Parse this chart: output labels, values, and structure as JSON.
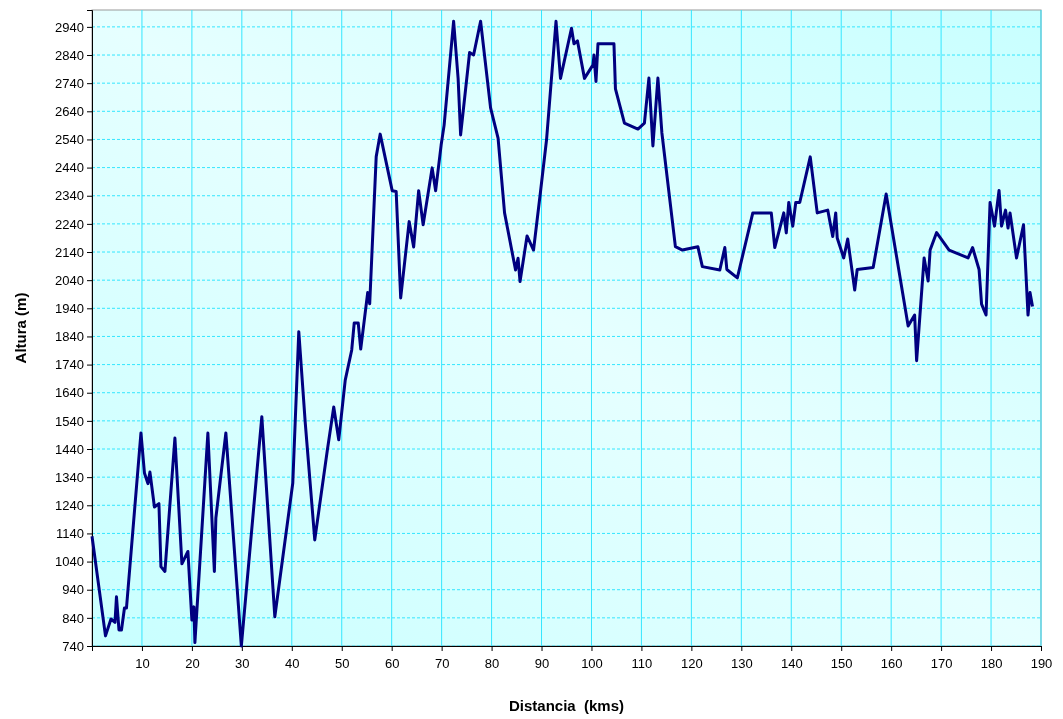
{
  "chart_data": {
    "type": "line",
    "xlabel": "Distancia  (kms)",
    "ylabel": "Altura (m)",
    "xlim": [
      0,
      190
    ],
    "xticks": [
      10,
      20,
      30,
      40,
      50,
      60,
      70,
      80,
      90,
      100,
      110,
      120,
      130,
      140,
      150,
      160,
      170,
      180,
      190
    ],
    "ylim": [
      740,
      3000
    ],
    "yticks": [
      740,
      840,
      940,
      1040,
      1140,
      1240,
      1340,
      1440,
      1540,
      1640,
      1740,
      1840,
      1940,
      2040,
      2140,
      2240,
      2340,
      2440,
      2540,
      2640,
      2740,
      2840,
      2940
    ],
    "grid": true,
    "marker": "none",
    "line_style": "solid",
    "series": [
      {
        "color": "#000080",
        "x": [
          0,
          2.7,
          3.8,
          4.6,
          4.9,
          5.4,
          5.9,
          6.5,
          6.9,
          9.8,
          10.5,
          11.2,
          11.6,
          12.5,
          13.4,
          13.8,
          14.6,
          16.6,
          18.0,
          19.2,
          20.0,
          20.4,
          20.6,
          23.2,
          24.5,
          24.8,
          26.8,
          29.9,
          34.0,
          36.6,
          40.2,
          41.4,
          42.7,
          44.6,
          47.1,
          48.4,
          49.4,
          50.7,
          52.0,
          52.5,
          53.3,
          53.8,
          55.2,
          55.6,
          56.9,
          57.7,
          60.1,
          60.9,
          61.8,
          63.5,
          64.4,
          65.4,
          66.3,
          68.1,
          68.8,
          69.9,
          70.5,
          72.4,
          73.3,
          73.8,
          75.6,
          76.4,
          77.8,
          79.8,
          81.3,
          82.6,
          84.8,
          85.3,
          85.7,
          87.1,
          88.4,
          89.8,
          91.0,
          92.9,
          93.8,
          96.0,
          96.5,
          97.2,
          98.6,
          100.3,
          100.5,
          100.9,
          101.3,
          104.5,
          104.8,
          106.6,
          109.3,
          110.6,
          111.5,
          112.3,
          113.3,
          114.1,
          116.8,
          118.2,
          121.3,
          122.2,
          125.7,
          126.7,
          127.1,
          129.2,
          132.3,
          136.0,
          136.7,
          138.5,
          139.0,
          139.5,
          140.3,
          140.9,
          141.7,
          143.8,
          145.2,
          147.3,
          148.3,
          148.9,
          149.2,
          150.5,
          151.3,
          152.7,
          153.2,
          156.4,
          159.0,
          163.4,
          164.7,
          165.1,
          166.6,
          167.4,
          167.8,
          169.1,
          171.6,
          175.4,
          176.3,
          177.6,
          178.1,
          179.0,
          179.8,
          180.7,
          181.6,
          182.1,
          182.9,
          183.4,
          183.8,
          185.1,
          186.5,
          187.4,
          187.8,
          188.3
        ],
        "values": [
          1130,
          776,
          836,
          824,
          915,
          797,
          797,
          875,
          875,
          1497,
          1355,
          1317,
          1358,
          1234,
          1246,
          1022,
          1005,
          1479,
          1032,
          1076,
          832,
          879,
          752,
          1497,
          1005,
          1195,
          1497,
          740,
          1555,
          844,
          1319,
          1857,
          1532,
          1117,
          1434,
          1589,
          1473,
          1685,
          1792,
          1888,
          1888,
          1795,
          1996,
          1956,
          2479,
          2559,
          2358,
          2355,
          1977,
          2248,
          2158,
          2358,
          2237,
          2439,
          2358,
          2520,
          2591,
          2960,
          2757,
          2556,
          2849,
          2840,
          2960,
          2652,
          2545,
          2279,
          2076,
          2118,
          2035,
          2197,
          2147,
          2355,
          2538,
          2960,
          2757,
          2935,
          2880,
          2890,
          2757,
          2805,
          2840,
          2746,
          2880,
          2880,
          2720,
          2598,
          2577,
          2598,
          2758,
          2517,
          2758,
          2563,
          2159,
          2147,
          2159,
          2088,
          2076,
          2156,
          2078,
          2048,
          2279,
          2279,
          2156,
          2279,
          2208,
          2316,
          2232,
          2316,
          2316,
          2478,
          2279,
          2289,
          2195,
          2279,
          2190,
          2119,
          2186,
          2005,
          2078,
          2085,
          2346,
          1877,
          1916,
          1754,
          2119,
          2037,
          2147,
          2209,
          2147,
          2119,
          2156,
          2078,
          1955,
          1916,
          2316,
          2232,
          2359,
          2232,
          2289,
          2225,
          2279,
          2119,
          2237,
          1916,
          1996,
          1946
        ]
      }
    ]
  }
}
